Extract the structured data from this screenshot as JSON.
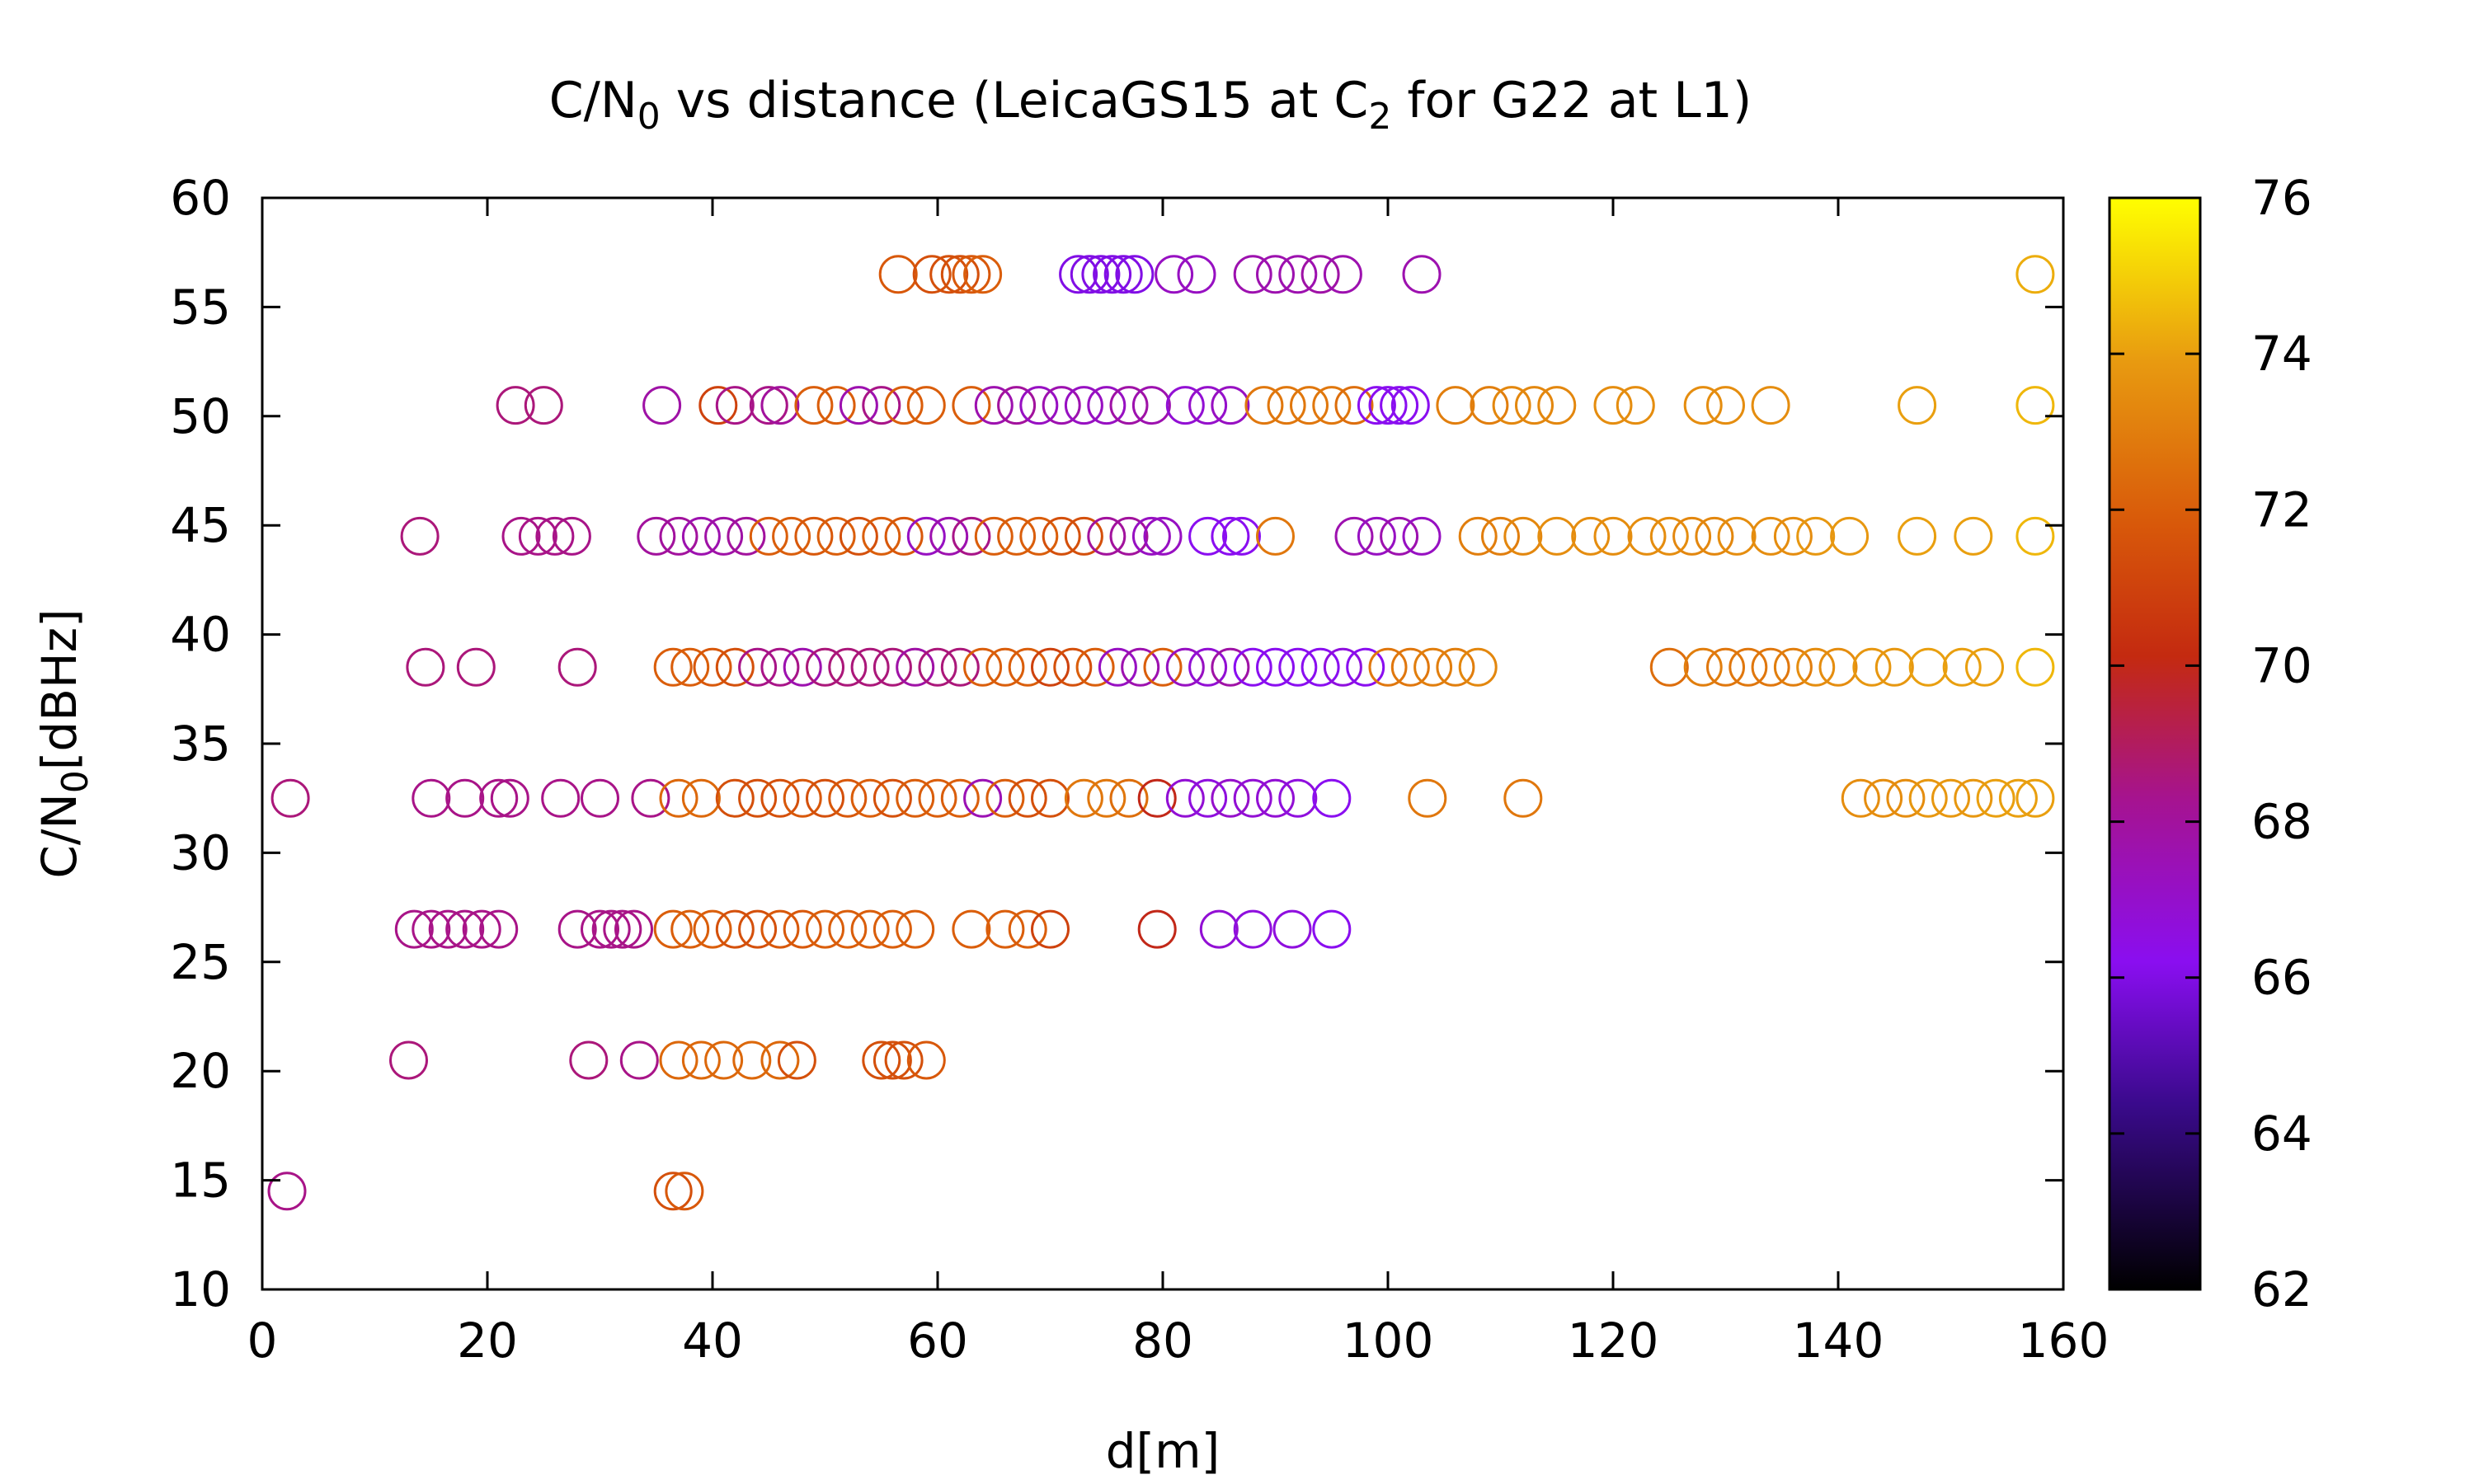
{
  "chart_data": {
    "type": "scatter",
    "title": {
      "base": "C/N",
      "sub": "0",
      "mid": " vs distance (LeicaGS15 at C",
      "sub2": "2",
      "end": " for G22 at L1)"
    },
    "xlabel": "d[m]",
    "ylabel": {
      "base": "C/N",
      "sub": "0",
      "end": "[dBHz]"
    },
    "xlim": [
      0,
      160
    ],
    "ylim": [
      10,
      60
    ],
    "xticks": [
      0,
      20,
      40,
      60,
      80,
      100,
      120,
      140,
      160
    ],
    "yticks": [
      10,
      15,
      20,
      25,
      30,
      35,
      40,
      45,
      50,
      55,
      60
    ],
    "colorbar": {
      "range": [
        62,
        76
      ],
      "ticks": [
        62,
        64,
        66,
        68,
        70,
        72,
        74,
        76
      ],
      "palette": "black-purple-red-orange-yellow",
      "stops": [
        {
          "v": 0.0,
          "c": "#000000"
        },
        {
          "v": 0.17,
          "c": "#3a0a8c"
        },
        {
          "v": 0.3,
          "c": "#8a0ef0"
        },
        {
          "v": 0.45,
          "c": "#a6138f"
        },
        {
          "v": 0.58,
          "c": "#c42a10"
        },
        {
          "v": 0.7,
          "c": "#d8580a"
        },
        {
          "v": 0.85,
          "c": "#e89a10"
        },
        {
          "v": 1.0,
          "c": "#ffff00"
        }
      ]
    },
    "marker": "open-circle",
    "grid": false,
    "legend": "none",
    "points": [
      [
        2.5,
        32.5,
        68.6
      ],
      [
        2.2,
        14.5,
        68.4
      ],
      [
        14,
        44.5,
        68.6
      ],
      [
        14.5,
        38.5,
        68.6
      ],
      [
        19,
        38.5,
        68.6
      ],
      [
        28,
        38.5,
        68.6
      ],
      [
        13,
        20.5,
        68.6
      ],
      [
        29,
        20.5,
        68.6
      ],
      [
        33.5,
        20.5,
        68.4
      ],
      [
        22.5,
        50.5,
        68.6
      ],
      [
        25,
        50.5,
        68.6
      ],
      [
        35.5,
        50.5,
        67.8
      ],
      [
        23,
        44.5,
        68.4
      ],
      [
        24.5,
        44.5,
        68.4
      ],
      [
        26,
        44.5,
        68.4
      ],
      [
        27.5,
        44.5,
        68.4
      ],
      [
        15,
        32.5,
        68.4
      ],
      [
        18,
        32.5,
        68.4
      ],
      [
        21,
        32.5,
        68.4
      ],
      [
        22,
        32.5,
        68.4
      ],
      [
        26.5,
        32.5,
        68.4
      ],
      [
        30,
        32.5,
        68.4
      ],
      [
        34.5,
        32.5,
        68.4
      ],
      [
        13.5,
        26.5,
        68.4
      ],
      [
        15,
        26.5,
        68.4
      ],
      [
        16.5,
        26.5,
        68.4
      ],
      [
        18,
        26.5,
        68.4
      ],
      [
        19.5,
        26.5,
        68.4
      ],
      [
        21,
        26.5,
        68.4
      ],
      [
        28,
        26.5,
        68.4
      ],
      [
        30,
        26.5,
        68.4
      ],
      [
        31,
        26.5,
        68.4
      ],
      [
        32,
        26.5,
        68.4
      ],
      [
        33,
        26.5,
        68.4
      ],
      [
        36.5,
        14.5,
        71.5
      ],
      [
        37.5,
        14.5,
        71.8
      ],
      [
        37,
        20.5,
        72.3
      ],
      [
        39,
        20.5,
        72.3
      ],
      [
        41,
        20.5,
        72.3
      ],
      [
        43.5,
        20.5,
        72.3
      ],
      [
        46,
        20.5,
        72.3
      ],
      [
        47.5,
        20.5,
        71.5
      ],
      [
        55,
        20.5,
        71.5
      ],
      [
        56,
        20.5,
        71.5
      ],
      [
        57,
        20.5,
        71.5
      ],
      [
        59,
        20.5,
        71.8
      ],
      [
        36.5,
        26.5,
        72
      ],
      [
        38,
        26.5,
        72
      ],
      [
        40,
        26.5,
        72
      ],
      [
        42,
        26.5,
        71.5
      ],
      [
        44,
        26.5,
        71.5
      ],
      [
        46,
        26.5,
        71.8
      ],
      [
        48,
        26.5,
        71.8
      ],
      [
        50,
        26.5,
        72
      ],
      [
        52,
        26.5,
        72
      ],
      [
        54,
        26.5,
        72
      ],
      [
        56,
        26.5,
        72
      ],
      [
        58,
        26.5,
        72
      ],
      [
        63,
        26.5,
        72
      ],
      [
        66,
        26.5,
        72
      ],
      [
        68,
        26.5,
        72
      ],
      [
        70,
        26.5,
        71
      ],
      [
        79.5,
        26.5,
        70
      ],
      [
        85,
        26.5,
        66.8
      ],
      [
        88,
        26.5,
        66.6
      ],
      [
        91.5,
        26.5,
        66.6
      ],
      [
        95,
        26.5,
        66.2
      ],
      [
        37,
        32.5,
        72.3
      ],
      [
        39,
        32.5,
        72.3
      ],
      [
        42,
        32.5,
        71.5
      ],
      [
        44,
        32.5,
        71.5
      ],
      [
        46,
        32.5,
        71.5
      ],
      [
        48,
        32.5,
        71.8
      ],
      [
        50,
        32.5,
        71.5
      ],
      [
        52,
        32.5,
        71.8
      ],
      [
        54,
        32.5,
        72
      ],
      [
        56,
        32.5,
        71.5
      ],
      [
        58,
        32.5,
        72
      ],
      [
        60,
        32.5,
        72
      ],
      [
        62,
        32.5,
        72
      ],
      [
        64,
        32.5,
        67.5
      ],
      [
        66,
        32.5,
        72
      ],
      [
        68,
        32.5,
        71.5
      ],
      [
        70,
        32.5,
        71.5
      ],
      [
        73,
        32.5,
        72.8
      ],
      [
        75,
        32.5,
        72.8
      ],
      [
        77,
        32.5,
        72.5
      ],
      [
        79.5,
        32.5,
        70
      ],
      [
        82,
        32.5,
        66.8
      ],
      [
        84,
        32.5,
        66.6
      ],
      [
        86,
        32.5,
        67
      ],
      [
        88,
        32.5,
        66.8
      ],
      [
        90,
        32.5,
        66.8
      ],
      [
        92,
        32.5,
        66.6
      ],
      [
        95,
        32.5,
        66.2
      ],
      [
        103.5,
        32.5,
        72.8
      ],
      [
        112,
        32.5,
        72.8
      ],
      [
        142,
        32.5,
        73.5
      ],
      [
        144,
        32.5,
        73.5
      ],
      [
        146,
        32.5,
        73.5
      ],
      [
        148,
        32.5,
        73.8
      ],
      [
        150,
        32.5,
        73.8
      ],
      [
        152,
        32.5,
        73.8
      ],
      [
        154,
        32.5,
        74
      ],
      [
        156,
        32.5,
        74
      ],
      [
        157.5,
        32.5,
        74
      ],
      [
        36.5,
        38.5,
        72
      ],
      [
        38,
        38.5,
        72
      ],
      [
        40,
        38.5,
        71.8
      ],
      [
        42,
        38.5,
        71.5
      ],
      [
        44,
        38.5,
        68.4
      ],
      [
        46,
        38.5,
        68.4
      ],
      [
        48,
        38.5,
        67.6
      ],
      [
        50,
        38.5,
        68.6
      ],
      [
        52,
        38.5,
        68.6
      ],
      [
        54,
        38.5,
        68.6
      ],
      [
        56,
        38.5,
        68.6
      ],
      [
        58,
        38.5,
        67.8
      ],
      [
        60,
        38.5,
        68.6
      ],
      [
        62,
        38.5,
        68.6
      ],
      [
        64,
        38.5,
        72
      ],
      [
        66,
        38.5,
        72
      ],
      [
        68,
        38.5,
        72
      ],
      [
        70,
        38.5,
        71
      ],
      [
        72,
        38.5,
        71.5
      ],
      [
        74,
        38.5,
        72
      ],
      [
        76,
        38.5,
        67.2
      ],
      [
        78,
        38.5,
        67.6
      ],
      [
        80,
        38.5,
        72
      ],
      [
        82,
        38.5,
        67.2
      ],
      [
        84,
        38.5,
        66.8
      ],
      [
        86,
        38.5,
        67.8
      ],
      [
        88,
        38.5,
        66.2
      ],
      [
        90,
        38.5,
        66.2
      ],
      [
        92,
        38.5,
        66.2
      ],
      [
        94,
        38.5,
        66.2
      ],
      [
        96,
        38.5,
        66.6
      ],
      [
        98,
        38.5,
        66.2
      ],
      [
        100,
        38.5,
        72.8
      ],
      [
        102,
        38.5,
        72.8
      ],
      [
        104,
        38.5,
        73
      ],
      [
        106,
        38.5,
        73
      ],
      [
        108,
        38.5,
        73.3
      ],
      [
        125,
        38.5,
        72.5
      ],
      [
        128,
        38.5,
        73
      ],
      [
        130,
        38.5,
        72.8
      ],
      [
        132,
        38.5,
        72.8
      ],
      [
        134,
        38.5,
        72.8
      ],
      [
        136,
        38.5,
        73
      ],
      [
        138,
        38.5,
        73.5
      ],
      [
        140,
        38.5,
        73.5
      ],
      [
        143,
        38.5,
        73.8
      ],
      [
        145,
        38.5,
        73.8
      ],
      [
        148,
        38.5,
        74
      ],
      [
        151,
        38.5,
        74
      ],
      [
        153,
        38.5,
        74
      ],
      [
        157.5,
        38.5,
        74.5
      ],
      [
        35,
        44.5,
        68
      ],
      [
        37,
        44.5,
        68
      ],
      [
        39,
        44.5,
        67.6
      ],
      [
        41,
        44.5,
        67.8
      ],
      [
        43,
        44.5,
        68
      ],
      [
        45,
        44.5,
        72
      ],
      [
        47,
        44.5,
        72
      ],
      [
        49,
        44.5,
        71.8
      ],
      [
        51,
        44.5,
        72
      ],
      [
        53,
        44.5,
        71.5
      ],
      [
        55,
        44.5,
        72
      ],
      [
        57,
        44.5,
        71.8
      ],
      [
        59,
        44.5,
        67.2
      ],
      [
        61,
        44.5,
        67.6
      ],
      [
        63,
        44.5,
        68.4
      ],
      [
        65,
        44.5,
        72
      ],
      [
        67,
        44.5,
        72
      ],
      [
        69,
        44.5,
        72
      ],
      [
        71,
        44.5,
        71.5
      ],
      [
        73,
        44.5,
        71.5
      ],
      [
        75,
        44.5,
        68
      ],
      [
        77,
        44.5,
        68
      ],
      [
        79,
        44.5,
        67.2
      ],
      [
        80,
        44.5,
        67.2
      ],
      [
        84,
        44.5,
        66.2
      ],
      [
        86,
        44.5,
        66.2
      ],
      [
        87,
        44.5,
        66.2
      ],
      [
        90,
        44.5,
        72.8
      ],
      [
        97,
        44.5,
        67.6
      ],
      [
        99,
        44.5,
        67.2
      ],
      [
        101,
        44.5,
        67.6
      ],
      [
        103,
        44.5,
        67.2
      ],
      [
        108,
        44.5,
        73
      ],
      [
        110,
        44.5,
        73
      ],
      [
        112,
        44.5,
        73.3
      ],
      [
        115,
        44.5,
        73.5
      ],
      [
        118,
        44.5,
        73.5
      ],
      [
        120,
        44.5,
        73.5
      ],
      [
        123,
        44.5,
        73.5
      ],
      [
        125,
        44.5,
        73.5
      ],
      [
        127,
        44.5,
        73.3
      ],
      [
        129,
        44.5,
        73.3
      ],
      [
        131,
        44.5,
        73.5
      ],
      [
        134,
        44.5,
        73.5
      ],
      [
        136,
        44.5,
        73.5
      ],
      [
        138,
        44.5,
        73.8
      ],
      [
        141,
        44.5,
        73.8
      ],
      [
        147,
        44.5,
        74
      ],
      [
        152,
        44.5,
        74
      ],
      [
        157.5,
        44.5,
        74.5
      ],
      [
        40.5,
        50.5,
        71
      ],
      [
        42,
        50.5,
        68.4
      ],
      [
        45,
        50.5,
        68.4
      ],
      [
        46,
        50.5,
        68
      ],
      [
        49,
        50.5,
        72
      ],
      [
        51,
        50.5,
        72
      ],
      [
        53,
        50.5,
        67.6
      ],
      [
        55,
        50.5,
        68.4
      ],
      [
        57,
        50.5,
        72
      ],
      [
        59,
        50.5,
        72
      ],
      [
        63,
        50.5,
        72
      ],
      [
        65,
        50.5,
        67.6
      ],
      [
        67,
        50.5,
        68
      ],
      [
        69,
        50.5,
        67.2
      ],
      [
        71,
        50.5,
        67.6
      ],
      [
        73,
        50.5,
        67.2
      ],
      [
        75,
        50.5,
        67.2
      ],
      [
        77,
        50.5,
        67.8
      ],
      [
        79,
        50.5,
        67.6
      ],
      [
        82,
        50.5,
        66.8
      ],
      [
        84,
        50.5,
        67
      ],
      [
        86,
        50.5,
        67.2
      ],
      [
        89,
        50.5,
        72.8
      ],
      [
        91,
        50.5,
        72.8
      ],
      [
        93,
        50.5,
        72.8
      ],
      [
        95,
        50.5,
        72.8
      ],
      [
        97,
        50.5,
        72.5
      ],
      [
        99,
        50.5,
        66.2
      ],
      [
        100,
        50.5,
        66.2
      ],
      [
        101,
        50.5,
        66.2
      ],
      [
        102,
        50.5,
        66.2
      ],
      [
        106,
        50.5,
        73
      ],
      [
        109,
        50.5,
        73
      ],
      [
        111,
        50.5,
        73.3
      ],
      [
        113,
        50.5,
        73.3
      ],
      [
        115,
        50.5,
        73.3
      ],
      [
        120,
        50.5,
        73.5
      ],
      [
        122,
        50.5,
        73.5
      ],
      [
        128,
        50.5,
        73.5
      ],
      [
        130,
        50.5,
        73.5
      ],
      [
        134,
        50.5,
        73.5
      ],
      [
        147,
        50.5,
        74
      ],
      [
        157.5,
        50.5,
        74.5
      ],
      [
        56.5,
        56.5,
        71.8
      ],
      [
        59.5,
        56.5,
        71.5
      ],
      [
        61,
        56.5,
        71.5
      ],
      [
        62,
        56.5,
        71.5
      ],
      [
        63,
        56.5,
        71.8
      ],
      [
        64,
        56.5,
        72
      ],
      [
        72.5,
        56.5,
        66
      ],
      [
        73.5,
        56.5,
        66
      ],
      [
        74.5,
        56.5,
        66
      ],
      [
        75.5,
        56.5,
        66
      ],
      [
        76.5,
        56.5,
        66
      ],
      [
        77.5,
        56.5,
        66
      ],
      [
        81,
        56.5,
        67.2
      ],
      [
        83,
        56.5,
        67.2
      ],
      [
        88,
        56.5,
        67.6
      ],
      [
        90,
        56.5,
        67.6
      ],
      [
        92,
        56.5,
        67.6
      ],
      [
        94,
        56.5,
        67.8
      ],
      [
        96,
        56.5,
        67.6
      ],
      [
        103,
        56.5,
        67.6
      ],
      [
        157.5,
        56.5,
        74.3
      ]
    ]
  }
}
